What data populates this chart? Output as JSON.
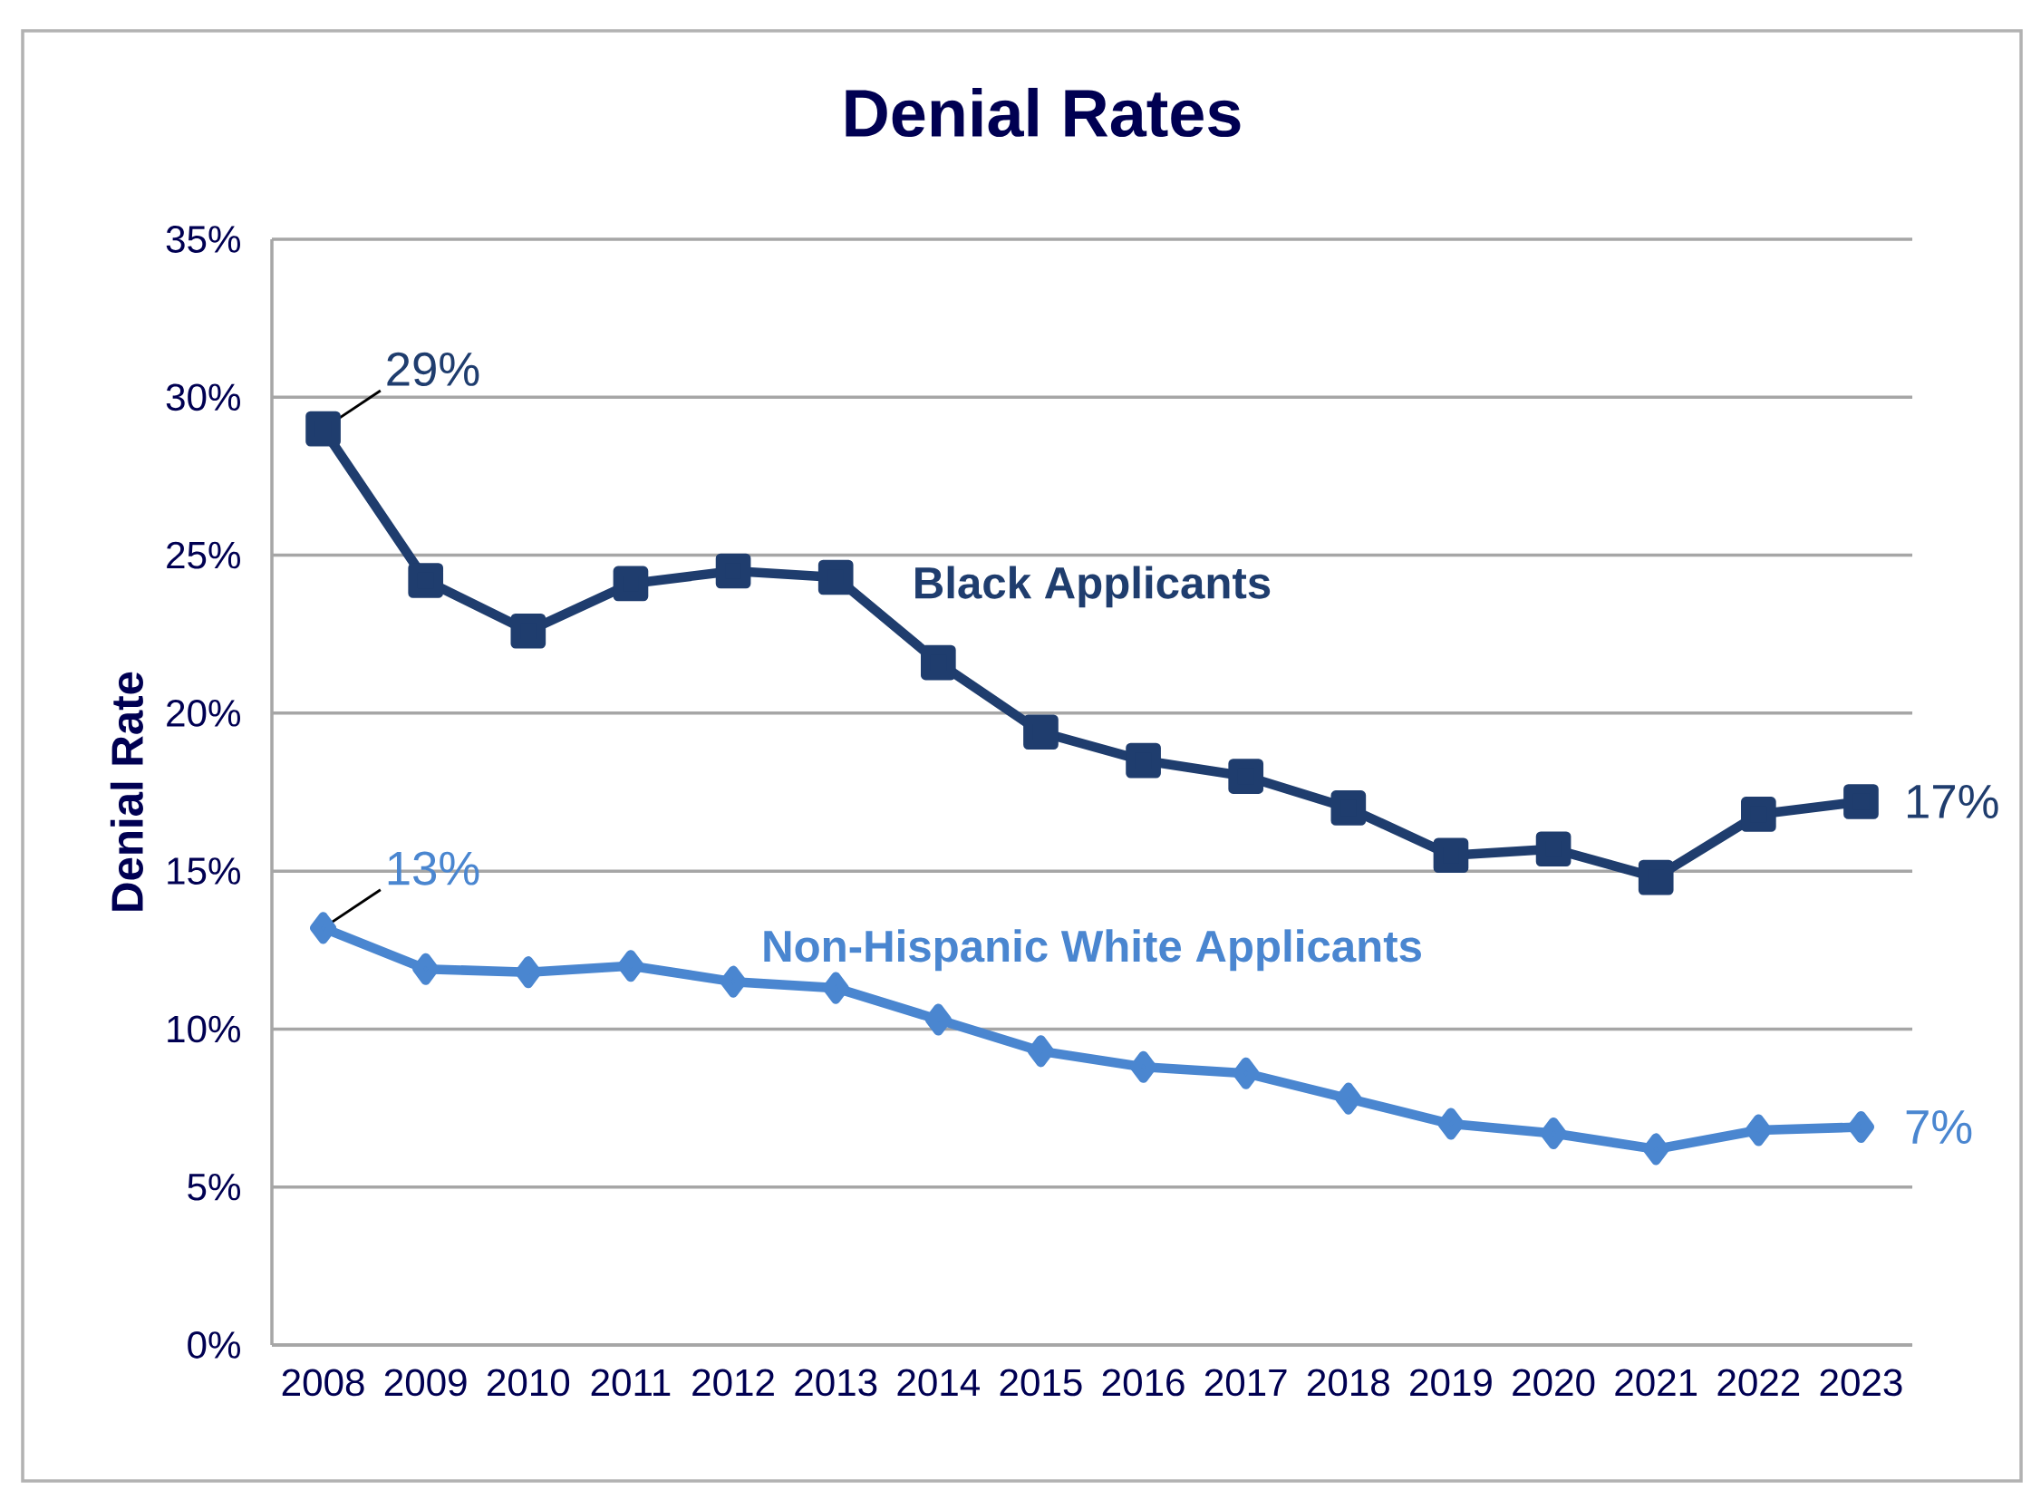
{
  "chart_data": {
    "type": "line",
    "title": "Denial Rates",
    "ylabel": "Denial Rate",
    "categories": [
      "2008",
      "2009",
      "2010",
      "2011",
      "2012",
      "2013",
      "2014",
      "2015",
      "2016",
      "2017",
      "2018",
      "2019",
      "2020",
      "2021",
      "2022",
      "2023"
    ],
    "series": [
      {
        "name": "Black Applicants",
        "color": "#1f3d6e",
        "marker": "square",
        "values": [
          29,
          24.2,
          22.6,
          24.1,
          24.5,
          24.3,
          21.6,
          19.4,
          18.5,
          18.0,
          17.0,
          15.5,
          15.7,
          14.8,
          16.8,
          17.2
        ],
        "value_labels": [
          "29%",
          null,
          null,
          null,
          null,
          null,
          null,
          null,
          null,
          null,
          null,
          null,
          null,
          null,
          null,
          "17%"
        ]
      },
      {
        "name": "Non-Hispanic White Applicants",
        "color": "#4a86d0",
        "marker": "diamond",
        "values": [
          13.2,
          11.9,
          11.8,
          12.0,
          11.5,
          11.3,
          10.3,
          9.3,
          8.8,
          8.6,
          7.8,
          7.0,
          6.7,
          6.2,
          6.8,
          6.9
        ],
        "value_labels": [
          "13%",
          null,
          null,
          null,
          null,
          null,
          null,
          null,
          null,
          null,
          null,
          null,
          null,
          null,
          null,
          "7%"
        ]
      }
    ],
    "ylim": [
      0,
      35
    ],
    "yticks": [
      {
        "value": 0,
        "label": "0%"
      },
      {
        "value": 5,
        "label": "5%"
      },
      {
        "value": 10,
        "label": "10%"
      },
      {
        "value": 15,
        "label": "15%"
      },
      {
        "value": 20,
        "label": "20%"
      },
      {
        "value": 25,
        "label": "25%"
      },
      {
        "value": 30,
        "label": "30%"
      },
      {
        "value": 35,
        "label": "35%"
      }
    ],
    "grid": "y",
    "legend": false,
    "line_style": "solid"
  }
}
